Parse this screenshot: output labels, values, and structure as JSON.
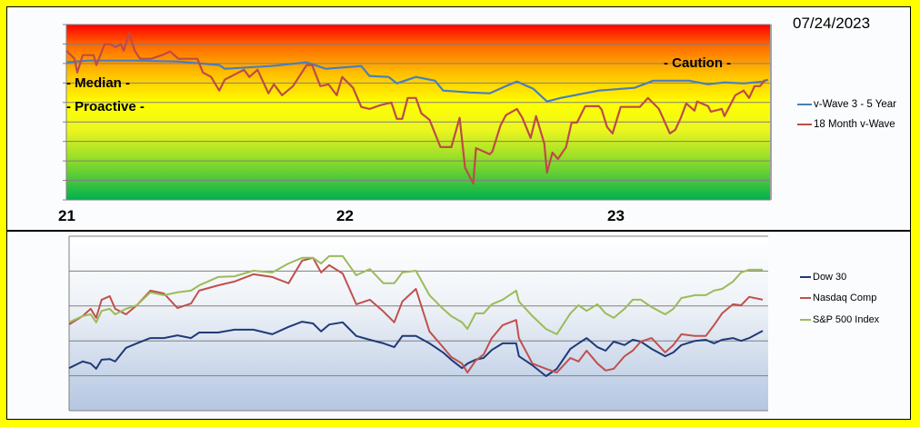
{
  "date_label": "07/24/2023",
  "chart_data": [
    {
      "type": "line",
      "title": "",
      "x_ticks": [
        "21",
        "22",
        "23"
      ],
      "x_tick_values": [
        21,
        22,
        23
      ],
      "xlim": [
        21.0,
        23.58
      ],
      "ylim": [
        0,
        9
      ],
      "grid": true,
      "y_tick_labels": false,
      "background": "red-to-green vertical gradient (red top, yellow middle, green bottom)",
      "zone_labels": [
        {
          "text": "- Caution -",
          "y": 7.0
        },
        {
          "text": "- Median -",
          "y": 6.0
        },
        {
          "text": "- Proactive -",
          "y": 4.8
        }
      ],
      "legend_placement": "right",
      "series": [
        {
          "name": "v-Wave 3 - 5 Year",
          "color": "#4a7ebb",
          "x": [
            21.0,
            21.08,
            21.25,
            21.41,
            21.56,
            21.58,
            21.75,
            21.88,
            21.95,
            22.08,
            22.11,
            22.18,
            22.21,
            22.28,
            22.35,
            22.38,
            22.48,
            22.55,
            22.61,
            22.65,
            22.71,
            22.76,
            22.81,
            22.95,
            23.08,
            23.15,
            23.28,
            23.35,
            23.41,
            23.48,
            23.55,
            23.57
          ],
          "y": [
            7.06,
            7.15,
            7.15,
            7.1,
            6.92,
            6.73,
            6.87,
            7.06,
            6.73,
            6.87,
            6.36,
            6.31,
            5.98,
            6.31,
            6.12,
            5.61,
            5.51,
            5.47,
            5.84,
            6.07,
            5.7,
            5.05,
            5.23,
            5.61,
            5.75,
            6.12,
            6.12,
            5.93,
            6.03,
            5.98,
            6.07,
            6.17
          ]
        },
        {
          "name": "18 Month v-Wave",
          "color": "#be4b48",
          "x": [
            21.0,
            21.03,
            21.04,
            21.06,
            21.1,
            21.11,
            21.14,
            21.16,
            21.18,
            21.2,
            21.21,
            21.23,
            21.25,
            21.27,
            21.31,
            21.35,
            21.38,
            21.41,
            21.48,
            21.5,
            21.53,
            21.56,
            21.58,
            21.65,
            21.67,
            21.7,
            21.74,
            21.76,
            21.79,
            21.83,
            21.88,
            21.9,
            21.93,
            21.96,
            21.99,
            22.01,
            22.05,
            22.08,
            22.11,
            22.15,
            22.19,
            22.21,
            22.23,
            22.25,
            22.28,
            22.3,
            22.33,
            22.37,
            22.41,
            22.44,
            22.46,
            22.49,
            22.5,
            22.55,
            22.56,
            22.59,
            22.61,
            22.65,
            22.67,
            22.7,
            22.72,
            22.75,
            22.76,
            22.78,
            22.8,
            22.83,
            22.85,
            22.87,
            22.9,
            22.95,
            22.96,
            22.98,
            23.0,
            23.03,
            23.1,
            23.13,
            23.17,
            23.21,
            23.23,
            23.25,
            23.27,
            23.3,
            23.31,
            23.35,
            23.36,
            23.4,
            23.41,
            23.45,
            23.48,
            23.5,
            23.52,
            23.54,
            23.56
          ],
          "y": [
            7.66,
            7.24,
            6.54,
            7.43,
            7.43,
            6.92,
            7.99,
            7.99,
            7.85,
            7.99,
            7.66,
            8.55,
            7.66,
            7.24,
            7.24,
            7.43,
            7.62,
            7.24,
            7.24,
            6.54,
            6.31,
            5.61,
            6.17,
            6.68,
            6.31,
            6.68,
            5.47,
            5.93,
            5.37,
            5.84,
            6.92,
            6.92,
            5.84,
            5.93,
            5.37,
            6.31,
            5.75,
            4.77,
            4.67,
            4.86,
            5.0,
            4.16,
            4.16,
            5.23,
            5.23,
            4.44,
            4.11,
            2.71,
            2.71,
            4.21,
            1.64,
            0.84,
            2.66,
            2.34,
            2.48,
            3.83,
            4.35,
            4.67,
            4.21,
            3.18,
            4.3,
            2.9,
            1.4,
            2.43,
            2.1,
            2.71,
            3.97,
            3.97,
            4.81,
            4.81,
            4.63,
            3.74,
            3.41,
            4.77,
            4.77,
            5.23,
            4.67,
            3.41,
            3.6,
            4.21,
            4.95,
            4.58,
            5.05,
            4.81,
            4.53,
            4.67,
            4.3,
            5.37,
            5.61,
            5.23,
            5.84,
            5.84,
            6.17
          ]
        }
      ]
    },
    {
      "type": "line",
      "title": "",
      "xlim": [
        21.0,
        23.58
      ],
      "ylim": [
        0,
        5
      ],
      "grid": true,
      "x_tick_labels": false,
      "y_tick_labels": false,
      "background": "white-to-light-blue vertical gradient",
      "legend_placement": "right",
      "x": [
        21.0,
        21.05,
        21.08,
        21.1,
        21.12,
        21.15,
        21.17,
        21.21,
        21.25,
        21.3,
        21.35,
        21.4,
        21.45,
        21.48,
        21.55,
        21.61,
        21.68,
        21.75,
        21.81,
        21.86,
        21.9,
        21.93,
        21.96,
        22.01,
        22.06,
        22.11,
        22.16,
        22.2,
        22.23,
        22.28,
        22.33,
        22.38,
        22.41,
        22.45,
        22.47,
        22.5,
        22.53,
        22.56,
        22.6,
        22.65,
        22.66,
        22.71,
        22.76,
        22.8,
        22.85,
        22.88,
        22.91,
        22.95,
        22.98,
        23.01,
        23.05,
        23.08,
        23.11,
        23.15,
        23.2,
        23.23,
        23.26,
        23.31,
        23.35,
        23.38,
        23.41,
        23.45,
        23.48,
        23.51,
        23.56
      ],
      "series": [
        {
          "name": "Dow 30",
          "color": "#1f3a78",
          "y": [
            1.22,
            1.41,
            1.35,
            1.2,
            1.46,
            1.48,
            1.41,
            1.8,
            1.93,
            2.08,
            2.08,
            2.16,
            2.08,
            2.24,
            2.24,
            2.32,
            2.32,
            2.19,
            2.4,
            2.55,
            2.5,
            2.27,
            2.47,
            2.53,
            2.14,
            2.03,
            1.93,
            1.82,
            2.14,
            2.14,
            1.93,
            1.67,
            1.46,
            1.22,
            1.35,
            1.46,
            1.51,
            1.74,
            1.93,
            1.93,
            1.56,
            1.3,
            0.99,
            1.2,
            1.77,
            1.93,
            2.08,
            1.82,
            1.72,
            1.98,
            1.88,
            2.03,
            1.98,
            1.77,
            1.56,
            1.67,
            1.88,
            2.0,
            2.03,
            1.93,
            2.03,
            2.08,
            2.0,
            2.08,
            2.29
          ]
        },
        {
          "name": "Nasdaq Comp",
          "color": "#c0504d",
          "y": [
            2.47,
            2.71,
            2.92,
            2.66,
            3.18,
            3.28,
            2.92,
            2.76,
            3.02,
            3.44,
            3.36,
            2.94,
            3.07,
            3.44,
            3.59,
            3.7,
            3.91,
            3.83,
            3.65,
            4.3,
            4.38,
            3.96,
            4.17,
            3.93,
            3.05,
            3.18,
            2.84,
            2.53,
            3.13,
            3.49,
            2.27,
            1.82,
            1.54,
            1.35,
            1.09,
            1.43,
            1.61,
            2.08,
            2.45,
            2.6,
            2.08,
            1.35,
            1.2,
            1.09,
            1.51,
            1.41,
            1.72,
            1.35,
            1.15,
            1.2,
            1.56,
            1.72,
            1.98,
            2.08,
            1.67,
            1.88,
            2.19,
            2.14,
            2.14,
            2.45,
            2.79,
            3.05,
            3.02,
            3.26,
            3.18
          ]
        },
        {
          "name": "S&P 500 Index",
          "color": "#9bbb59",
          "y": [
            2.53,
            2.71,
            2.76,
            2.53,
            2.86,
            2.92,
            2.76,
            2.92,
            3.02,
            3.39,
            3.31,
            3.39,
            3.44,
            3.59,
            3.83,
            3.85,
            4.01,
            3.96,
            4.22,
            4.38,
            4.38,
            4.22,
            4.43,
            4.43,
            3.88,
            4.06,
            3.65,
            3.65,
            3.96,
            4.01,
            3.31,
            2.92,
            2.71,
            2.53,
            2.34,
            2.79,
            2.79,
            3.05,
            3.18,
            3.44,
            3.13,
            2.71,
            2.34,
            2.19,
            2.79,
            3.02,
            2.86,
            3.05,
            2.79,
            2.66,
            2.92,
            3.18,
            3.18,
            2.97,
            2.76,
            2.92,
            3.23,
            3.31,
            3.31,
            3.44,
            3.49,
            3.7,
            3.96,
            4.04,
            4.04
          ]
        }
      ]
    }
  ]
}
